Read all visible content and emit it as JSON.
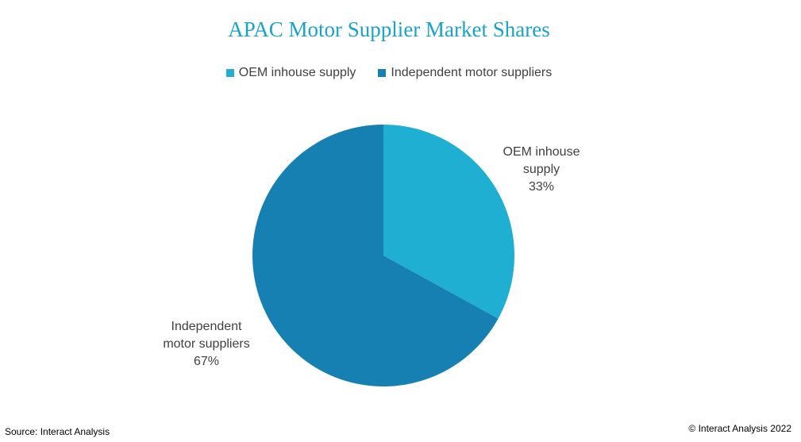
{
  "chart_data": {
    "type": "pie",
    "title": "APAC Motor Supplier Market Shares",
    "slices": [
      {
        "label": "OEM inhouse supply",
        "label_line1": "OEM inhouse",
        "label_line2": "supply",
        "value": 33,
        "value_label": "33%",
        "color": "#1eafd2"
      },
      {
        "label": "Independent motor suppliers",
        "label_line1": "Independent",
        "label_line2": "motor suppliers",
        "value": 67,
        "value_label": "67%",
        "color": "#1680b2"
      }
    ],
    "legend_position": "top"
  },
  "footer": {
    "source": "Source: Interact Analysis",
    "copyright": "© Interact Analysis 2022"
  }
}
